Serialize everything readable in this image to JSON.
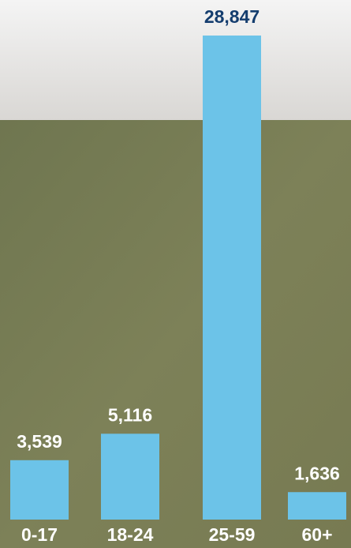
{
  "chart_data": {
    "type": "bar",
    "categories": [
      "0-17",
      "18-24",
      "25-59",
      "60+"
    ],
    "values": [
      3539,
      5116,
      28847,
      1636
    ],
    "value_labels": [
      "3,539",
      "5,116",
      "28,847",
      "1,636"
    ],
    "color": "#6cc3e8"
  }
}
